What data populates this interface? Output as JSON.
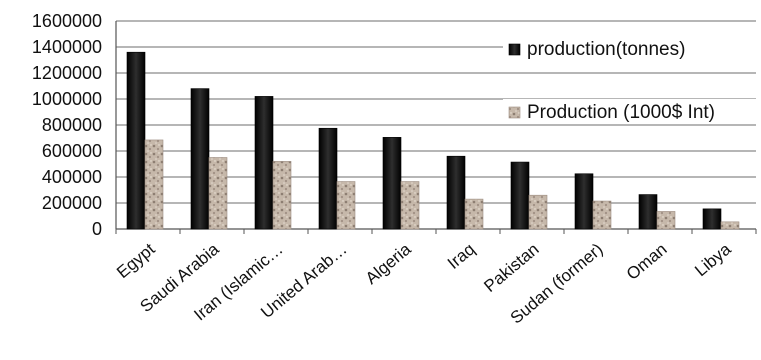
{
  "chart_data": {
    "type": "bar",
    "categories": [
      "Egypt",
      "Saudi Arabia",
      "Iran (Islamic…",
      "United Arab…",
      "Algeria",
      "Iraq",
      "Pakistan",
      "Sudan (former)",
      "Oman",
      "Libya"
    ],
    "series": [
      {
        "name": "production(tonnes)",
        "color": "#111111",
        "values": [
          1360000,
          1080000,
          1020000,
          775000,
          705000,
          560000,
          515000,
          425000,
          265000,
          155000
        ]
      },
      {
        "name": "Production (1000$ Int)",
        "color": "#b8a898",
        "values": [
          685000,
          550000,
          520000,
          365000,
          365000,
          230000,
          260000,
          215000,
          135000,
          55000
        ]
      }
    ],
    "ylim": [
      0,
      1600000
    ],
    "yticks": [
      "0",
      "200000",
      "400000",
      "600000",
      "800000",
      "1000000",
      "1200000",
      "1400000",
      "1600000"
    ],
    "grid": true,
    "legend_position": "right"
  }
}
